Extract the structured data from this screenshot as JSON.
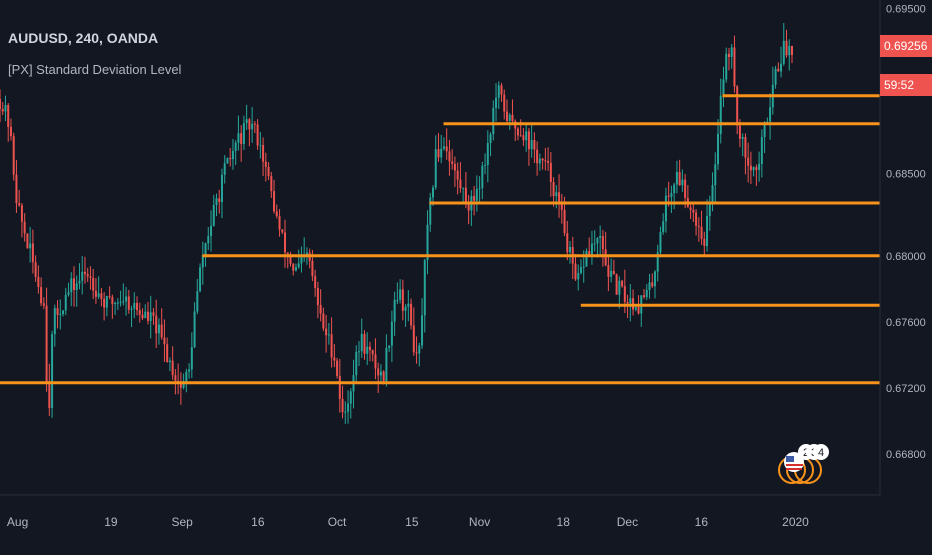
{
  "header": {
    "title": "AUDUSD, 240, OANDA",
    "indicator_name": "[PX] Standard Deviation Level"
  },
  "price_badge": {
    "price": "0.69256",
    "countdown": "59:52",
    "color": "#ef5350"
  },
  "colors": {
    "background": "#131722",
    "up_candle": "#26a69a",
    "down_candle": "#ef5350",
    "level_line": "#f7931a",
    "axis_text": "#b2b5be"
  },
  "chart_data": {
    "type": "candlestick",
    "symbol": "AUDUSD",
    "timeframe": "240",
    "source": "OANDA",
    "x_ticks": [
      "Aug",
      "19",
      "Sep",
      "16",
      "Oct",
      "15",
      "Nov",
      "18",
      "Dec",
      "16",
      "2020"
    ],
    "y_ticks": [
      "0.69500",
      "0.68500",
      "0.68000",
      "0.67600",
      "0.67200",
      "0.66800"
    ],
    "ylim": [
      0.6655,
      0.6955
    ],
    "last_price": 0.69256,
    "close_path": [
      [
        0.0,
        0.6895
      ],
      [
        0.01,
        0.688
      ],
      [
        0.02,
        0.683
      ],
      [
        0.035,
        0.68
      ],
      [
        0.05,
        0.677
      ],
      [
        0.055,
        0.67
      ],
      [
        0.06,
        0.676
      ],
      [
        0.08,
        0.678
      ],
      [
        0.1,
        0.679
      ],
      [
        0.12,
        0.677
      ],
      [
        0.14,
        0.6775
      ],
      [
        0.16,
        0.6765
      ],
      [
        0.175,
        0.676
      ],
      [
        0.19,
        0.674
      ],
      [
        0.205,
        0.672
      ],
      [
        0.215,
        0.673
      ],
      [
        0.22,
        0.676
      ],
      [
        0.23,
        0.68
      ],
      [
        0.24,
        0.682
      ],
      [
        0.255,
        0.685
      ],
      [
        0.27,
        0.687
      ],
      [
        0.285,
        0.688
      ],
      [
        0.295,
        0.687
      ],
      [
        0.305,
        0.6845
      ],
      [
        0.32,
        0.681
      ],
      [
        0.335,
        0.679
      ],
      [
        0.35,
        0.68
      ],
      [
        0.365,
        0.676
      ],
      [
        0.38,
        0.674
      ],
      [
        0.39,
        0.67
      ],
      [
        0.4,
        0.6725
      ],
      [
        0.41,
        0.675
      ],
      [
        0.42,
        0.674
      ],
      [
        0.435,
        0.6725
      ],
      [
        0.45,
        0.678
      ],
      [
        0.465,
        0.6765
      ],
      [
        0.475,
        0.673
      ],
      [
        0.485,
        0.681
      ],
      [
        0.495,
        0.686
      ],
      [
        0.505,
        0.687
      ],
      [
        0.52,
        0.6845
      ],
      [
        0.535,
        0.683
      ],
      [
        0.55,
        0.6855
      ],
      [
        0.565,
        0.69
      ],
      [
        0.58,
        0.688
      ],
      [
        0.595,
        0.6875
      ],
      [
        0.61,
        0.686
      ],
      [
        0.625,
        0.685
      ],
      [
        0.64,
        0.682
      ],
      [
        0.655,
        0.678
      ],
      [
        0.665,
        0.68
      ],
      [
        0.68,
        0.681
      ],
      [
        0.695,
        0.6785
      ],
      [
        0.71,
        0.6775
      ],
      [
        0.725,
        0.677
      ],
      [
        0.74,
        0.678
      ],
      [
        0.755,
        0.683
      ],
      [
        0.77,
        0.685
      ],
      [
        0.785,
        0.683
      ],
      [
        0.8,
        0.681
      ],
      [
        0.81,
        0.684
      ],
      [
        0.82,
        0.6905
      ],
      [
        0.83,
        0.693
      ],
      [
        0.84,
        0.687
      ],
      [
        0.85,
        0.686
      ],
      [
        0.86,
        0.685
      ],
      [
        0.87,
        0.688
      ],
      [
        0.88,
        0.691
      ],
      [
        0.89,
        0.6925
      ],
      [
        0.9,
        0.6926
      ]
    ],
    "levels": [
      {
        "price": 0.6897,
        "x_start": 0.821
      },
      {
        "price": 0.688,
        "x_start": 0.504
      },
      {
        "price": 0.6832,
        "x_start": 0.488
      },
      {
        "price": 0.68,
        "x_start": 0.23
      },
      {
        "price": 0.677,
        "x_start": 0.66
      },
      {
        "price": 0.6723,
        "x_start": 0.0
      }
    ],
    "grid": false,
    "legend": "none"
  }
}
